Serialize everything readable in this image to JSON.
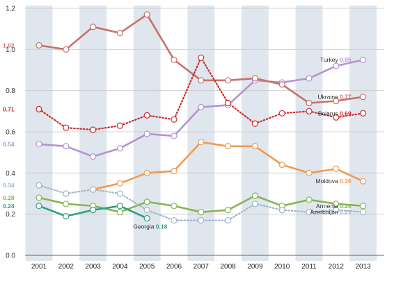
{
  "chart_data": {
    "type": "line",
    "title": "",
    "xlabel": "",
    "ylabel": "",
    "ylim": [
      0,
      1.2
    ],
    "yticks": [
      "0.0",
      "0.2",
      "0.4",
      "0.6",
      "0.8",
      "1.0",
      "1.2"
    ],
    "categories": [
      "2001",
      "2002",
      "2003",
      "2004",
      "2005",
      "2006",
      "2007",
      "2008",
      "2009",
      "2010",
      "2011",
      "2012",
      "2013"
    ],
    "grid": true,
    "legend": "inline-right",
    "series": [
      {
        "name": "Turkey",
        "color": "#b493cf",
        "dash": false,
        "values": [
          0.54,
          0.53,
          0.48,
          0.52,
          0.59,
          0.58,
          0.72,
          0.73,
          0.85,
          0.84,
          0.86,
          0.92,
          0.95
        ],
        "end_label": "0.95",
        "start_label": "0.54"
      },
      {
        "name": "Ukraine",
        "color": "#c8706c",
        "dash": false,
        "values": [
          1.02,
          1.0,
          1.11,
          1.08,
          1.17,
          0.95,
          0.85,
          0.85,
          0.86,
          0.83,
          0.74,
          0.75,
          0.77
        ],
        "end_label": "0.77",
        "start_label": "1.02"
      },
      {
        "name": "Belarus",
        "color": "#cc2b2b",
        "dash": true,
        "values": [
          0.71,
          0.62,
          0.61,
          0.63,
          0.68,
          0.66,
          0.96,
          0.74,
          0.64,
          0.69,
          0.7,
          0.67,
          0.69
        ],
        "end_label": "0.69",
        "start_label": "0.71"
      },
      {
        "name": "Moldova",
        "color": "#f19a50",
        "dash": false,
        "values": [
          null,
          null,
          0.32,
          0.35,
          0.4,
          0.41,
          0.55,
          0.53,
          0.53,
          0.44,
          0.4,
          0.42,
          0.36
        ],
        "end_label": "0.36"
      },
      {
        "name": "Armenia",
        "color": "#86b551",
        "dash": false,
        "values": [
          0.28,
          0.25,
          0.24,
          0.21,
          0.26,
          0.24,
          0.21,
          0.22,
          0.29,
          0.24,
          0.27,
          0.25,
          0.24
        ],
        "end_label": "0.24",
        "start_label": "0.28"
      },
      {
        "name": "Azerbaijan",
        "color": "#9fb4cc",
        "dash": true,
        "values": [
          0.34,
          0.3,
          0.32,
          0.3,
          0.22,
          0.17,
          0.17,
          0.17,
          0.25,
          0.22,
          0.21,
          0.22,
          0.21
        ],
        "end_label": "0.21",
        "start_label": "0.34"
      },
      {
        "name": "Georgia",
        "color": "#2fa27e",
        "dash": false,
        "values": [
          0.24,
          0.19,
          0.22,
          0.24,
          0.18,
          null,
          null,
          null,
          null,
          null,
          null,
          null,
          null
        ],
        "end_label": "0.18",
        "start_label": "0.24"
      }
    ]
  }
}
